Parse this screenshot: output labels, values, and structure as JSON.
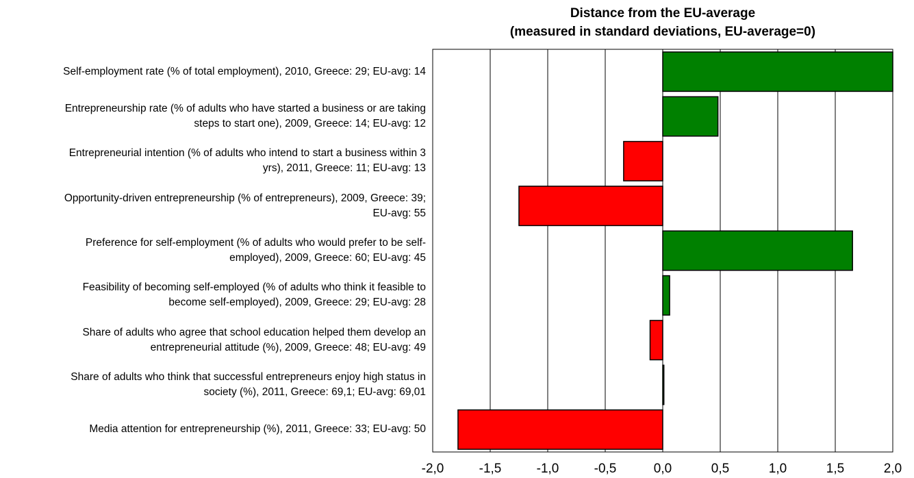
{
  "chart_data": {
    "type": "bar",
    "orientation": "horizontal",
    "title": "Distance from the EU-average",
    "subtitle": "(measured in standard deviations, EU-average=0)",
    "xlim": [
      -2.0,
      2.0
    ],
    "xticks": [
      "-2,0",
      "-1,5",
      "-1,0",
      "-0,5",
      "0,0",
      "0,5",
      "1,0",
      "1,5",
      "2,0"
    ],
    "xtick_values": [
      -2.0,
      -1.5,
      -1.0,
      -0.5,
      0.0,
      0.5,
      1.0,
      1.5,
      2.0
    ],
    "grid": "vertical",
    "colors": {
      "positive": "#008000",
      "negative": "#ff0000",
      "border": "#000000"
    },
    "categories": [
      {
        "line1": "Self-employment rate (% of total employment), 2010, Greece: 29; EU-avg: 14",
        "line2": "",
        "value": 2.0
      },
      {
        "line1": "Entrepreneurship rate (% of adults who have started a business or are taking",
        "line2": "steps to start one), 2009, Greece: 14; EU-avg: 12",
        "value": 0.48
      },
      {
        "line1": "Entrepreneurial intention (% of adults who intend to start a business within 3",
        "line2": "yrs), 2011, Greece: 11; EU-avg: 13",
        "value": -0.34
      },
      {
        "line1": "Opportunity-driven entrepreneurship (% of entrepreneurs), 2009, Greece: 39;",
        "line2": "EU-avg: 55",
        "value": -1.25
      },
      {
        "line1": "Preference for self-employment (% of adults who would prefer to be self-",
        "line2": "employed), 2009, Greece: 60; EU-avg: 45",
        "value": 1.65
      },
      {
        "line1": "Feasibility of becoming self-employed (% of adults who think it feasible to",
        "line2": "become self-employed), 2009, Greece: 29; EU-avg: 28",
        "value": 0.06
      },
      {
        "line1": "Share of adults who agree that school education helped them develop an",
        "line2": "entrepreneurial attitude (%), 2009, Greece: 48; EU-avg: 49",
        "value": -0.11
      },
      {
        "line1": "Share of adults who think that successful entrepreneurs enjoy high status in",
        "line2": "society (%), 2011, Greece: 69,1; EU-avg: 69,01",
        "value": 0.01
      },
      {
        "line1": "Media attention for entrepreneurship (%), 2011, Greece: 33; EU-avg: 50",
        "line2": "",
        "value": -1.78
      }
    ]
  }
}
